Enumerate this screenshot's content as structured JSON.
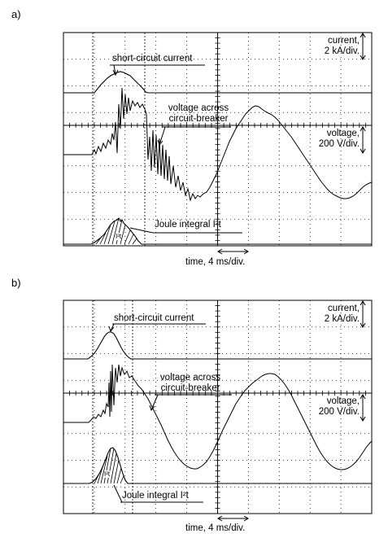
{
  "panels": [
    {
      "label": "a)",
      "current_label": "short-circuit current",
      "voltage_label_line1": "voltage across",
      "voltage_label_line2": "circuit-breaker",
      "joule_label": "Joule integral I²t",
      "i2t_small": "I²t",
      "current_scale_line1": "current,",
      "current_scale_line2": "2 kA/div.",
      "voltage_scale_line1": "voltage,",
      "voltage_scale_line2": "200 V/div.",
      "time_label": "time, 4 ms/div."
    },
    {
      "label": "b)",
      "current_label": "short-circuit current",
      "voltage_label_line1": "voltage across",
      "voltage_label_line2": "circuit-breaker",
      "joule_label": "Joule integral I²t",
      "i2t_small": "I²t",
      "current_scale_line1": "current,",
      "current_scale_line2": "2 kA/div.",
      "voltage_scale_line1": "voltage,",
      "voltage_scale_line2": "200 V/div.",
      "time_label": "time, 4 ms/div."
    }
  ]
}
